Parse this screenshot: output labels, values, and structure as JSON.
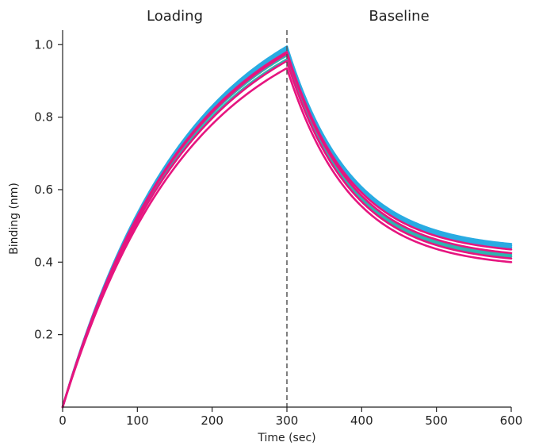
{
  "chart_data": {
    "type": "line",
    "title": "",
    "xlabel": "Time (sec)",
    "ylabel": "Binding (nm)",
    "xlim": [
      0,
      600
    ],
    "ylim": [
      0,
      1.04
    ],
    "x_ticks": [
      "0",
      "100",
      "200",
      "300",
      "400",
      "500",
      "600"
    ],
    "y_ticks": [
      "0.2",
      "0.4",
      "0.6",
      "0.8",
      "1.0"
    ],
    "grid": false,
    "legend": "none",
    "phases": [
      {
        "label": "Loading",
        "start": 0,
        "end": 300
      },
      {
        "label": "Baseline",
        "start": 300,
        "end": 600
      }
    ],
    "phase_boundary": 300,
    "colors": {
      "cyan": "#29abe2",
      "teal": "#2fb5b0",
      "magenta": "#e6157f",
      "boundary": "#555555"
    },
    "series": [
      {
        "color": "#29abe2",
        "peak": 0.995,
        "end": 0.45
      },
      {
        "color": "#29abe2",
        "peak": 0.99,
        "end": 0.445
      },
      {
        "color": "#29abe2",
        "peak": 0.985,
        "end": 0.44
      },
      {
        "color": "#2fb5b0",
        "peak": 0.97,
        "end": 0.42
      },
      {
        "color": "#2fb5b0",
        "peak": 0.96,
        "end": 0.415
      },
      {
        "color": "#e6157f",
        "peak": 0.98,
        "end": 0.435
      },
      {
        "color": "#e6157f",
        "peak": 0.975,
        "end": 0.425
      },
      {
        "color": "#e6157f",
        "peak": 0.955,
        "end": 0.41
      },
      {
        "color": "#e6157f",
        "peak": 0.935,
        "end": 0.4
      }
    ]
  }
}
